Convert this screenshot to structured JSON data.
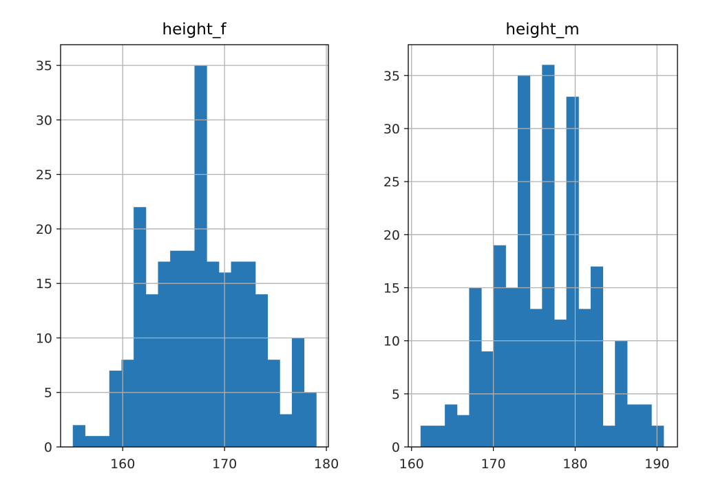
{
  "chart_data": [
    {
      "type": "bar",
      "title": "height_f",
      "xlabel": "",
      "ylabel": "",
      "grid": true,
      "color": "#2878b5",
      "bin_start": 155.1,
      "bin_end": 179.0,
      "values": [
        2,
        1,
        1,
        7,
        8,
        22,
        14,
        17,
        18,
        18,
        35,
        17,
        16,
        17,
        17,
        14,
        8,
        3,
        10,
        5
      ],
      "xlim": [
        153.9,
        180.2
      ],
      "ylim": [
        0,
        36.9
      ],
      "xticks": [
        160,
        170,
        180
      ],
      "yticks": [
        0,
        5,
        10,
        15,
        20,
        25,
        30,
        35
      ]
    },
    {
      "type": "bar",
      "title": "height_m",
      "xlabel": "",
      "ylabel": "",
      "grid": true,
      "color": "#2878b5",
      "bin_start": 161.1,
      "bin_end": 190.8,
      "values": [
        2,
        2,
        4,
        3,
        15,
        9,
        19,
        15,
        35,
        13,
        36,
        12,
        33,
        13,
        17,
        2,
        10,
        4,
        4,
        2
      ],
      "xlim": [
        159.6,
        192.5
      ],
      "ylim": [
        0,
        37.9
      ],
      "xticks": [
        160,
        170,
        180,
        190
      ],
      "yticks": [
        0,
        5,
        10,
        15,
        20,
        25,
        30,
        35
      ]
    }
  ]
}
